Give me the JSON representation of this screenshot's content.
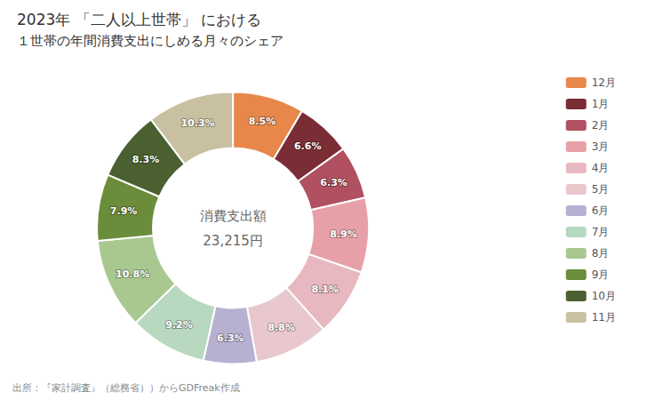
{
  "chart_data": {
    "type": "pie",
    "title": "2023年 「二人以上世帯」 における",
    "subtitle": "１世帯の年間消費支出にしめる月々のシェア",
    "categories": [
      "12月",
      "1月",
      "2月",
      "3月",
      "4月",
      "5月",
      "6月",
      "7月",
      "8月",
      "9月",
      "10月",
      "11月"
    ],
    "values": [
      8.5,
      6.6,
      6.3,
      8.9,
      8.1,
      8.8,
      6.3,
      9.2,
      10.8,
      7.9,
      8.3,
      10.3
    ],
    "value_labels": [
      "8.5%",
      "6.6%",
      "6.3%",
      "8.9%",
      "8.1%",
      "8.8%",
      "6.3%",
      "9.2%",
      "10.8%",
      "7.9%",
      "8.3%",
      "10.3%"
    ],
    "colors": [
      "#e8874a",
      "#7b2d35",
      "#b05060",
      "#e8a0a8",
      "#e8b8c0",
      "#e8c8cc",
      "#b8b0d0",
      "#b8d8c0",
      "#a8c890",
      "#6b8c3a",
      "#4a6030",
      "#c8c0a0"
    ],
    "data_labels": true,
    "legend": "right",
    "annotations": [
      "消費支出額",
      "23,215円",
      "出所：『家計調査』（総務省））からGDFreak作成"
    ]
  }
}
